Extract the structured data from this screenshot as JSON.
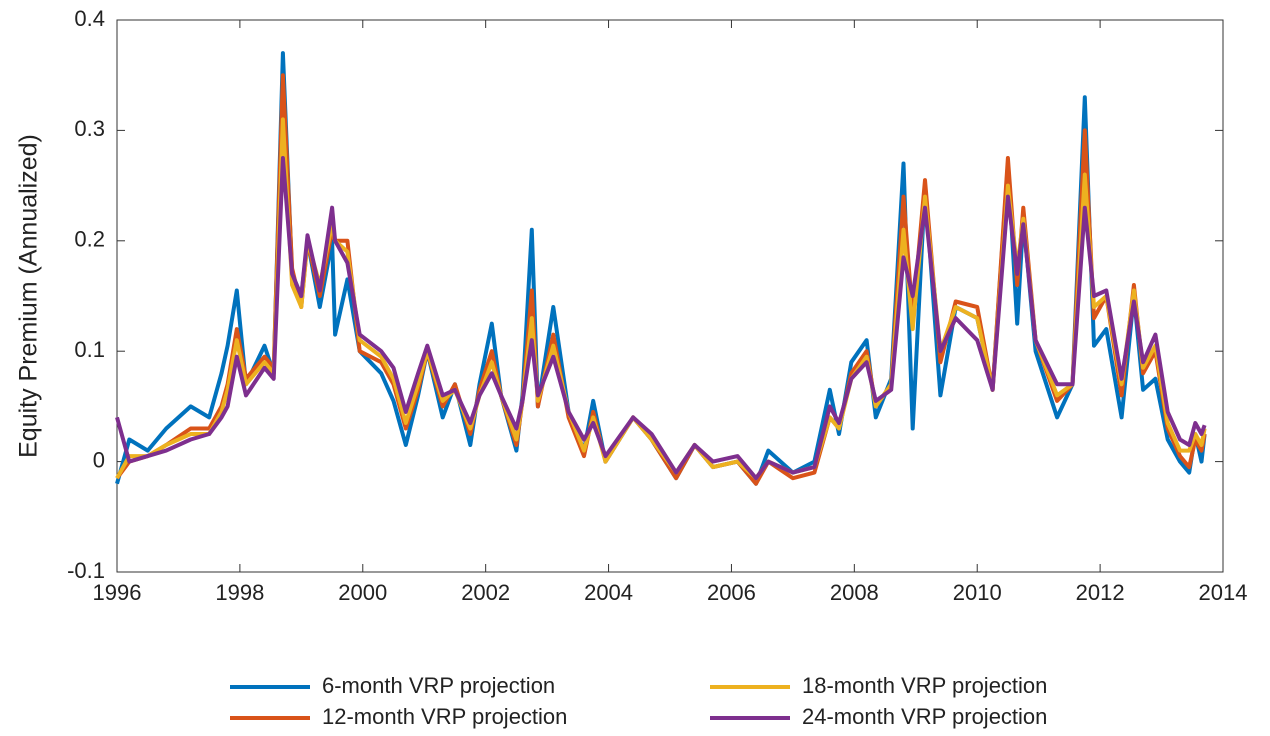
{
  "chart_data": {
    "type": "line",
    "y_label": "Equity Premium (Annualized)",
    "x": [
      1996.0,
      1996.2,
      1996.5,
      1996.8,
      1997.2,
      1997.5,
      1997.7,
      1997.8,
      1997.95,
      1998.1,
      1998.4,
      1998.55,
      1998.7,
      1998.85,
      1999.0,
      1999.1,
      1999.3,
      1999.5,
      1999.55,
      1999.75,
      1999.95,
      2000.3,
      2000.5,
      2000.7,
      2000.9,
      2001.05,
      2001.3,
      2001.5,
      2001.75,
      2001.9,
      2002.1,
      2002.25,
      2002.5,
      2002.6,
      2002.75,
      2002.85,
      2003.1,
      2003.35,
      2003.6,
      2003.75,
      2003.95,
      2004.4,
      2004.7,
      2005.1,
      2005.4,
      2005.7,
      2006.1,
      2006.4,
      2006.6,
      2007.0,
      2007.35,
      2007.6,
      2007.75,
      2007.95,
      2008.2,
      2008.35,
      2008.6,
      2008.8,
      2008.95,
      2009.15,
      2009.4,
      2009.65,
      2010.0,
      2010.25,
      2010.5,
      2010.65,
      2010.75,
      2010.95,
      2011.3,
      2011.55,
      2011.75,
      2011.9,
      2012.1,
      2012.35,
      2012.55,
      2012.7,
      2012.9,
      2013.1,
      2013.3,
      2013.45,
      2013.55,
      2013.65,
      2013.7
    ],
    "series": [
      {
        "name": "6-month VRP projection",
        "color": "#0072bd",
        "values": [
          -0.02,
          0.02,
          0.01,
          0.03,
          0.05,
          0.04,
          0.08,
          0.105,
          0.155,
          0.07,
          0.105,
          0.08,
          0.37,
          0.17,
          0.15,
          0.2,
          0.14,
          0.2,
          0.115,
          0.165,
          0.1,
          0.08,
          0.055,
          0.015,
          0.06,
          0.1,
          0.04,
          0.07,
          0.015,
          0.07,
          0.125,
          0.06,
          0.01,
          0.06,
          0.21,
          0.05,
          0.14,
          0.045,
          0.01,
          0.055,
          0.0,
          0.04,
          0.02,
          -0.015,
          0.015,
          -0.005,
          0.0,
          -0.02,
          0.01,
          -0.01,
          0.0,
          0.065,
          0.025,
          0.09,
          0.11,
          0.04,
          0.075,
          0.27,
          0.03,
          0.25,
          0.06,
          0.14,
          0.13,
          0.065,
          0.27,
          0.125,
          0.22,
          0.1,
          0.04,
          0.07,
          0.33,
          0.105,
          0.12,
          0.04,
          0.15,
          0.065,
          0.075,
          0.02,
          0.0,
          -0.01,
          0.025,
          0.0,
          0.025
        ]
      },
      {
        "name": "12-month VRP projection",
        "color": "#d95319",
        "values": [
          -0.015,
          0.0,
          0.005,
          0.015,
          0.03,
          0.03,
          0.05,
          0.07,
          0.12,
          0.075,
          0.095,
          0.085,
          0.35,
          0.175,
          0.14,
          0.2,
          0.15,
          0.21,
          0.2,
          0.2,
          0.1,
          0.09,
          0.07,
          0.03,
          0.065,
          0.1,
          0.05,
          0.07,
          0.025,
          0.065,
          0.1,
          0.06,
          0.015,
          0.055,
          0.155,
          0.05,
          0.115,
          0.04,
          0.005,
          0.045,
          0.0,
          0.04,
          0.02,
          -0.015,
          0.015,
          -0.005,
          0.0,
          -0.02,
          0.0,
          -0.015,
          -0.01,
          0.04,
          0.03,
          0.08,
          0.1,
          0.05,
          0.07,
          0.24,
          0.13,
          0.255,
          0.09,
          0.145,
          0.14,
          0.065,
          0.275,
          0.16,
          0.23,
          0.11,
          0.055,
          0.07,
          0.3,
          0.13,
          0.15,
          0.06,
          0.16,
          0.08,
          0.1,
          0.03,
          0.005,
          -0.005,
          0.02,
          0.01,
          0.025
        ]
      },
      {
        "name": "18-month VRP projection",
        "color": "#edb120",
        "values": [
          -0.015,
          0.005,
          0.005,
          0.015,
          0.025,
          0.025,
          0.045,
          0.065,
          0.11,
          0.07,
          0.09,
          0.08,
          0.31,
          0.16,
          0.14,
          0.2,
          0.16,
          0.215,
          0.2,
          0.19,
          0.11,
          0.095,
          0.075,
          0.035,
          0.07,
          0.1,
          0.055,
          0.065,
          0.03,
          0.06,
          0.09,
          0.06,
          0.02,
          0.055,
          0.13,
          0.055,
          0.105,
          0.045,
          0.01,
          0.04,
          0.0,
          0.04,
          0.02,
          -0.01,
          0.015,
          -0.005,
          0.0,
          -0.015,
          0.0,
          -0.01,
          -0.005,
          0.04,
          0.03,
          0.075,
          0.095,
          0.05,
          0.07,
          0.21,
          0.12,
          0.24,
          0.1,
          0.14,
          0.13,
          0.065,
          0.25,
          0.175,
          0.22,
          0.11,
          0.06,
          0.07,
          0.26,
          0.14,
          0.15,
          0.07,
          0.155,
          0.085,
          0.105,
          0.035,
          0.01,
          0.01,
          0.025,
          0.015,
          0.03
        ]
      },
      {
        "name": "24-month VRP projection",
        "color": "#7e2f8e",
        "values": [
          0.04,
          0.0,
          0.005,
          0.01,
          0.02,
          0.025,
          0.04,
          0.05,
          0.095,
          0.06,
          0.085,
          0.075,
          0.275,
          0.17,
          0.15,
          0.205,
          0.155,
          0.23,
          0.2,
          0.18,
          0.115,
          0.1,
          0.085,
          0.045,
          0.08,
          0.105,
          0.06,
          0.065,
          0.035,
          0.06,
          0.08,
          0.06,
          0.03,
          0.055,
          0.11,
          0.06,
          0.095,
          0.045,
          0.02,
          0.035,
          0.005,
          0.04,
          0.025,
          -0.01,
          0.015,
          0.0,
          0.005,
          -0.015,
          0.0,
          -0.01,
          -0.005,
          0.05,
          0.035,
          0.075,
          0.09,
          0.055,
          0.065,
          0.185,
          0.15,
          0.23,
          0.1,
          0.13,
          0.11,
          0.065,
          0.24,
          0.17,
          0.215,
          0.11,
          0.07,
          0.07,
          0.23,
          0.15,
          0.155,
          0.075,
          0.145,
          0.09,
          0.115,
          0.045,
          0.02,
          0.015,
          0.035,
          0.025,
          0.033
        ]
      }
    ],
    "xlim": [
      1996,
      2014
    ],
    "xticks": [
      1996,
      1998,
      2000,
      2002,
      2004,
      2006,
      2008,
      2010,
      2012,
      2014
    ],
    "ylim": [
      -0.1,
      0.4
    ],
    "yticks": [
      -0.1,
      0,
      0.1,
      0.2,
      0.3,
      0.4
    ],
    "grid": false,
    "legend": "bottom"
  }
}
